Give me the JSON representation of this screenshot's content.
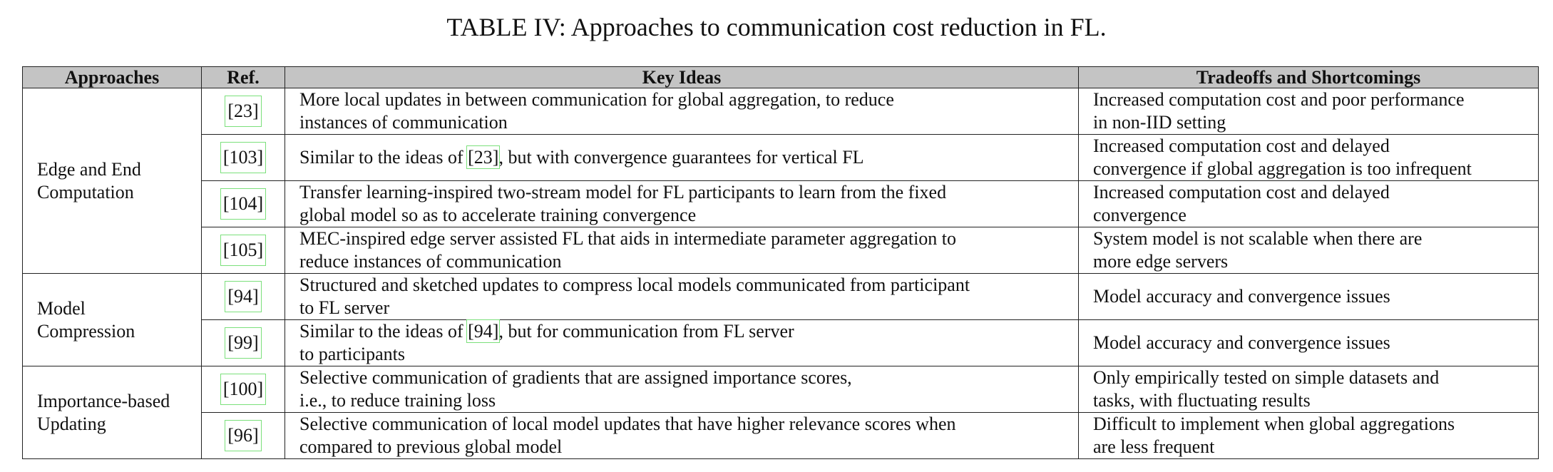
{
  "caption": "TABLE IV: Approaches to communication cost reduction in FL.",
  "colors": {
    "header_bg": "#c4c4c4",
    "link_box": "#7be07b",
    "border": "#222222"
  },
  "headers": [
    "Approaches",
    "Ref.",
    "Key Ideas",
    "Tradeoffs and Shortcomings"
  ],
  "groups": [
    {
      "name_line1": "Edge and End",
      "name_line2": "Computation"
    },
    {
      "name_line1": "Model",
      "name_line2": "Compression"
    },
    {
      "name_line1": "Importance-based",
      "name_line2": "Updating"
    }
  ],
  "rows": [
    {
      "ref": "[23]",
      "idea_l1": "More local updates in between communication for global aggregation, to reduce",
      "idea_l2": "instances of communication",
      "trade_l1": "Increased computation cost and poor performance",
      "trade_l2": "in non-IID setting"
    },
    {
      "ref": "[103]",
      "idea_pre": "Similar to the ideas of ",
      "idea_cite": "[23]",
      "idea_post": ", but with convergence guarantees for vertical FL",
      "trade_l1": "Increased computation cost and delayed",
      "trade_l2": "convergence if global aggregation is too infrequent"
    },
    {
      "ref": "[104]",
      "idea_l1": "Transfer learning-inspired two-stream model for FL participants to learn from the fixed",
      "idea_l2": "global model so as to accelerate training convergence",
      "trade_l1": "Increased computation cost and delayed",
      "trade_l2": "convergence"
    },
    {
      "ref": "[105]",
      "idea_l1": "MEC-inspired edge server assisted FL that aids in intermediate parameter aggregation to",
      "idea_l2": "reduce instances of communication",
      "trade_l1": "System model is not scalable when there are",
      "trade_l2": "more edge servers"
    },
    {
      "ref": "[94]",
      "idea_l1": "Structured and sketched updates to compress local models communicated from participant",
      "idea_l2": "to FL server",
      "trade": "Model accuracy and convergence issues"
    },
    {
      "ref": "[99]",
      "idea_pre": "Similar to the ideas of ",
      "idea_cite": "[94]",
      "idea_post": ", but for communication from FL server",
      "idea_l2": "to participants",
      "trade": "Model accuracy and convergence issues"
    },
    {
      "ref": "[100]",
      "idea_l1": "Selective communication of gradients that are assigned importance scores,",
      "idea_l2": "i.e., to reduce training loss",
      "trade_l1": "Only empirically tested on simple datasets and",
      "trade_l2": "tasks, with fluctuating results"
    },
    {
      "ref": "[96]",
      "idea_l1": "Selective communication of local model updates that have higher relevance scores when",
      "idea_l2": "compared to previous global model",
      "trade_l1": "Difficult to implement when global aggregations",
      "trade_l2": "are less frequent"
    }
  ]
}
